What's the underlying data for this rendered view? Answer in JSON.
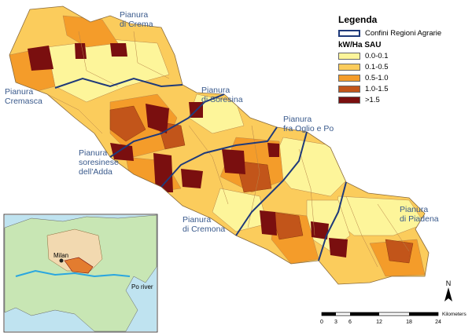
{
  "region_labels": [
    {
      "id": "crema",
      "lines": [
        "Pianura",
        "di Crema"
      ]
    },
    {
      "id": "cremasca",
      "lines": [
        "Pianura",
        "Cremasca"
      ]
    },
    {
      "id": "soresina",
      "lines": [
        "Pianura",
        "di Soresina"
      ]
    },
    {
      "id": "oglio",
      "lines": [
        "Pianura",
        "fra Oglio e Po"
      ]
    },
    {
      "id": "adda",
      "lines": [
        "Pianura",
        "soresinese",
        "dell'Adda"
      ]
    },
    {
      "id": "cremona",
      "lines": [
        "Pianura",
        "di Cremona"
      ]
    },
    {
      "id": "piadena",
      "lines": [
        "Pianura",
        "di Piadena"
      ]
    }
  ],
  "legend": {
    "title": "Legenda",
    "border_label": "Confini Regioni Agrarie",
    "unit_label": "kW/Ha SAU",
    "classes": [
      {
        "label": "0.0-0.1",
        "color": "#fdf59a"
      },
      {
        "label": "0.1-0.5",
        "color": "#fbcc5c"
      },
      {
        "label": "0.5-1.0",
        "color": "#f49c2a"
      },
      {
        "label": "1.0-1.5",
        "color": "#c2551a"
      },
      {
        "label": ">1.5",
        "color": "#7a0f0f"
      }
    ]
  },
  "inset": {
    "milan_label": "Milan",
    "po_label": "Po river"
  },
  "north_arrow_label": "N",
  "scalebar": {
    "ticks": [
      "0",
      "3",
      "6",
      "12",
      "18",
      "24"
    ],
    "unit": "Kilometers"
  }
}
